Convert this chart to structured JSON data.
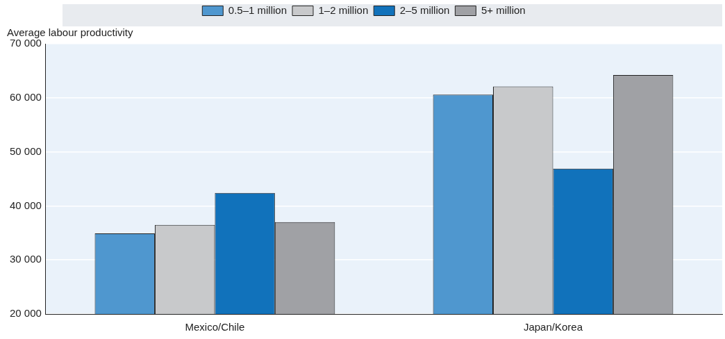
{
  "chart_data": {
    "type": "bar",
    "ylabel": "Average labour productivity",
    "categories": [
      "Mexico/Chile",
      "Japan/Korea"
    ],
    "series": [
      {
        "name": "0.5–1 million",
        "color": "#4f97cf",
        "values": [
          34900,
          60600
        ]
      },
      {
        "name": "1–2 million",
        "color": "#c8c9cb",
        "values": [
          36500,
          62100
        ]
      },
      {
        "name": "2–5 million",
        "color": "#1172bb",
        "values": [
          42400,
          46900
        ]
      },
      {
        "name": "5+ million",
        "color": "#a0a1a5",
        "values": [
          37000,
          64200
        ]
      }
    ],
    "ylim": [
      20000,
      70000
    ],
    "yticks": [
      {
        "value": 20000,
        "label": "20 000"
      },
      {
        "value": 30000,
        "label": "30 000"
      },
      {
        "value": 40000,
        "label": "40 000"
      },
      {
        "value": 50000,
        "label": "50 000"
      },
      {
        "value": 60000,
        "label": "60 000"
      },
      {
        "value": 70000,
        "label": "70 000"
      }
    ],
    "grid": true,
    "legend": "top"
  }
}
